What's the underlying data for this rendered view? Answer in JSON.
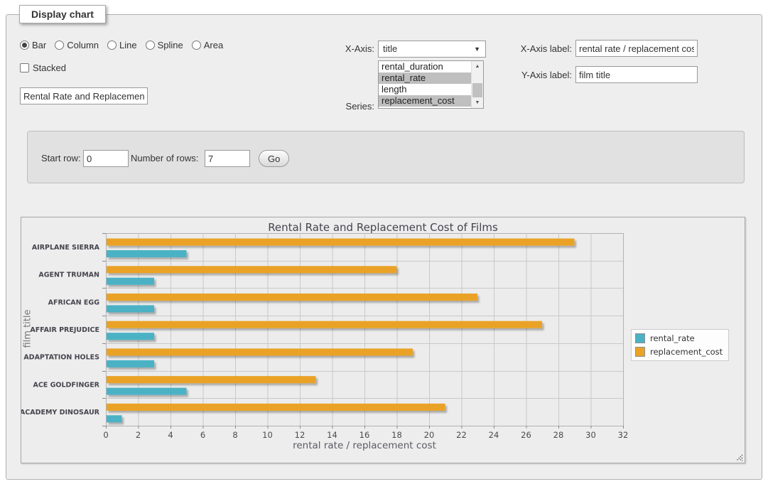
{
  "display_chart": {
    "legend_title": "Display chart",
    "chart_type": {
      "options": [
        "Bar",
        "Column",
        "Line",
        "Spline",
        "Area"
      ],
      "selected": "Bar"
    },
    "stacked": {
      "label": "Stacked",
      "checked": false
    },
    "chart_title_input": {
      "value": "Rental Rate and Replacement Cost of Films"
    },
    "x_axis": {
      "label": "X-Axis:",
      "selected": "title"
    },
    "series_picker": {
      "label": "Series:",
      "options": [
        {
          "label": "rental_duration",
          "selected": false
        },
        {
          "label": "rental_rate",
          "selected": true
        },
        {
          "label": "length",
          "selected": false
        },
        {
          "label": "replacement_cost",
          "selected": true
        }
      ]
    },
    "x_axis_label": {
      "label": "X-Axis label:",
      "value": "rental rate / replacement cost"
    },
    "y_axis_label": {
      "label": "Y-Axis label:",
      "value": "film title"
    }
  },
  "row_controls": {
    "start_row": {
      "label": "Start row:",
      "value": "0"
    },
    "number_of_rows": {
      "label": "Number of rows:",
      "value": "7"
    },
    "go_button": "Go"
  },
  "chart_data": {
    "type": "bar",
    "orientation": "horizontal",
    "title": "Rental Rate and Replacement Cost of Films",
    "categories": [
      "AIRPLANE SIERRA",
      "AGENT TRUMAN",
      "AFRICAN EGG",
      "AFFAIR PREJUDICE",
      "ADAPTATION HOLES",
      "ACE GOLDFINGER",
      "ACADEMY DINOSAUR"
    ],
    "series": [
      {
        "name": "rental_rate",
        "color": "#4bb2c5",
        "values": [
          4.99,
          2.99,
          2.99,
          2.99,
          2.99,
          4.99,
          0.99
        ]
      },
      {
        "name": "replacement_cost",
        "color": "#eaa228",
        "values": [
          28.99,
          17.99,
          22.99,
          26.99,
          18.99,
          12.99,
          20.99
        ]
      }
    ],
    "bar_order_top_to_bottom": [
      "replacement_cost",
      "rental_rate"
    ],
    "xlabel": "rental rate / replacement cost",
    "ylabel": "film title",
    "xlim": [
      0,
      32
    ],
    "xticks": [
      0,
      2,
      4,
      6,
      8,
      10,
      12,
      14,
      16,
      18,
      20,
      22,
      24,
      26,
      28,
      30,
      32
    ],
    "grid": true,
    "legend_position": "right",
    "colors": {
      "grid_line": "#c9c9c9",
      "plot_border": "#b2b2b2",
      "plot_bg": "#ececec",
      "tick_text": "#4a4a4a",
      "category_text": "#45454e"
    }
  }
}
